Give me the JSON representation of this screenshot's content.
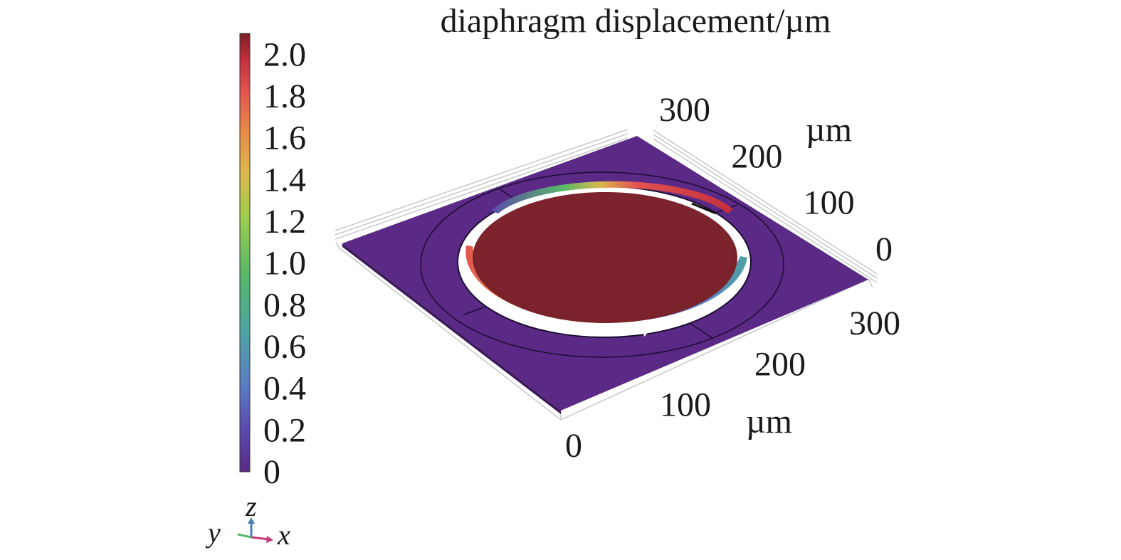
{
  "title": "diaphragm displacement/µm",
  "colorbar": {
    "min": 0,
    "max": 2.1,
    "ticks": [
      "2.0",
      "1.8",
      "1.6",
      "1.4",
      "1.2",
      "1.0",
      "0.8",
      "0.6",
      "0.4",
      "0.2",
      "0"
    ],
    "tick_values": [
      2.0,
      1.8,
      1.6,
      1.4,
      1.2,
      1.0,
      0.8,
      0.6,
      0.4,
      0.2,
      0
    ],
    "colormap": [
      "#5a2a86",
      "#5b4bb0",
      "#5a7fc4",
      "#4fa3a2",
      "#58b768",
      "#9ccd4d",
      "#dcb84e",
      "#e88949",
      "#e2534f",
      "#c42e3e",
      "#7d2027"
    ]
  },
  "x_axis": {
    "ticks": [
      "0",
      "100",
      "200",
      "300"
    ],
    "unit": "µm"
  },
  "y_axis": {
    "ticks": [
      "0",
      "100",
      "200",
      "300"
    ],
    "unit": "µm"
  },
  "triad": {
    "z": "z",
    "y": "y",
    "x": "x"
  },
  "colors": {
    "substrate": "#5a2a86",
    "diaphragm": "#7a2229",
    "axis_line": "#c8c8c8"
  }
}
